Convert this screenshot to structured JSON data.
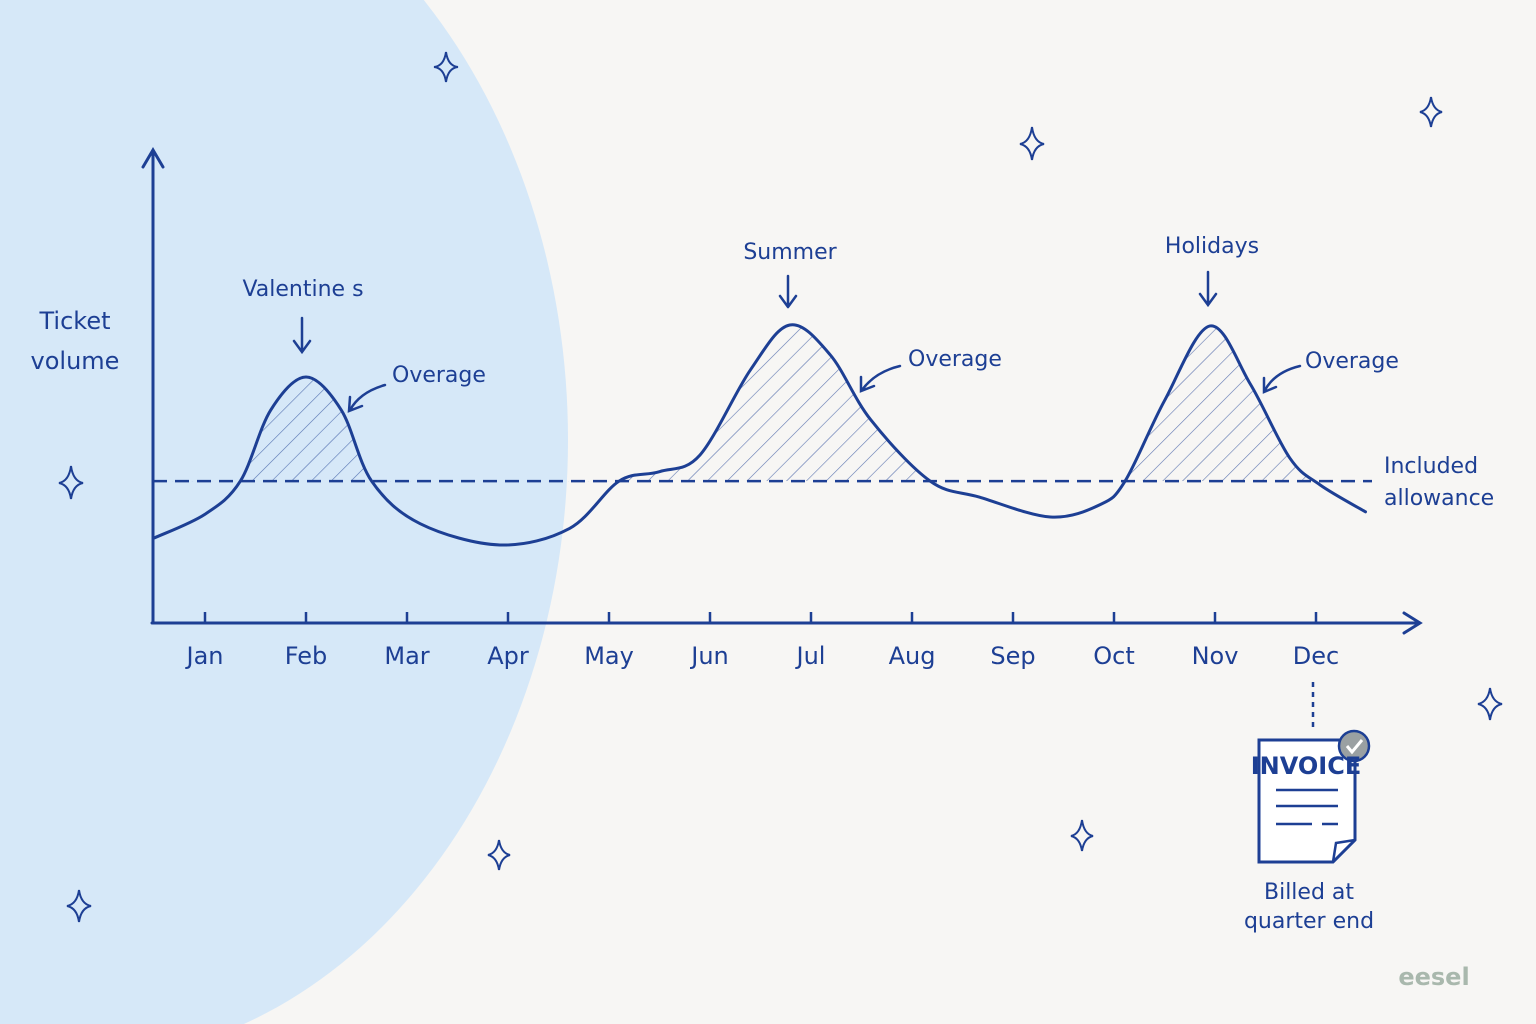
{
  "chart_data": {
    "type": "line",
    "y_label": [
      "Ticket",
      "volume"
    ],
    "x": [
      0.5,
      1.0,
      1.35,
      1.65,
      2.0,
      2.35,
      2.65,
      3.13,
      3.92,
      4.61,
      5.1,
      5.5,
      5.9,
      6.4,
      6.79,
      7.19,
      7.59,
      8.18,
      8.67,
      9.37,
      9.86,
      10.11,
      10.5,
      10.95,
      11.35,
      11.74,
      12.04,
      12.49
    ],
    "series": [
      {
        "color": "#1d3f94",
        "values": [
          18,
          23,
          30,
          45,
          52,
          45,
          30,
          21,
          16.5,
          20,
          30,
          32,
          35.5,
          53.5,
          63,
          56.7,
          43,
          30,
          26.6,
          22.4,
          25,
          30,
          47,
          62.8,
          50.5,
          34.9,
          29.2,
          23.5
        ]
      }
    ],
    "allowance": 30,
    "allowance_label": [
      "Included",
      "allowance"
    ],
    "xlim": [
      0.5,
      13
    ],
    "ylim": [
      0,
      100
    ],
    "xticks": [
      {
        "value": 1,
        "label": "Jan"
      },
      {
        "value": 2,
        "label": "Feb"
      },
      {
        "value": 3,
        "label": "Mar"
      },
      {
        "value": 4,
        "label": "Apr"
      },
      {
        "value": 5,
        "label": "May"
      },
      {
        "value": 6,
        "label": "Jun"
      },
      {
        "value": 7,
        "label": "Jul"
      },
      {
        "value": 8,
        "label": "Aug"
      },
      {
        "value": 9,
        "label": "Sep"
      },
      {
        "value": 10,
        "label": "Oct"
      },
      {
        "value": 11,
        "label": "Nov"
      },
      {
        "value": 12,
        "label": "Dec"
      }
    ],
    "annotations": [
      "Valentine s",
      "Summer",
      "Holidays"
    ],
    "overage_labels": [
      "Overage",
      "Overage",
      "Overage"
    ],
    "invoice": {
      "title": "INVOICE",
      "caption": [
        "Billed at",
        "quarter end"
      ]
    },
    "brand": "eesel"
  }
}
